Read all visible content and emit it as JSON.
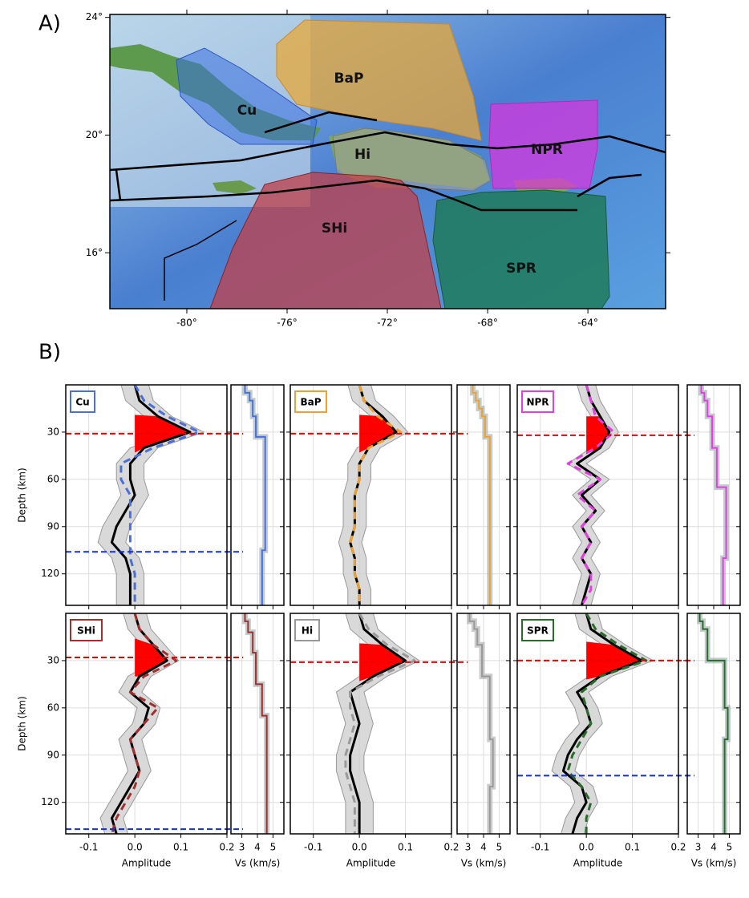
{
  "panel_a": {
    "label": "A)",
    "xlim": [
      -83.07,
      -60.9
    ],
    "ylim": [
      14.1,
      24.1
    ],
    "lat_ticks": [
      {
        "value": 24,
        "label": "24°"
      },
      {
        "value": 20,
        "label": "20°"
      },
      {
        "value": 16,
        "label": "16°"
      }
    ],
    "lon_ticks": [
      {
        "value": -80,
        "label": "-80°"
      },
      {
        "value": -76,
        "label": "-76°"
      },
      {
        "value": -72,
        "label": "-72°"
      },
      {
        "value": -68,
        "label": "-68°"
      },
      {
        "value": -64,
        "label": "-64°"
      }
    ],
    "regions": [
      "Cu",
      "BaP",
      "NPR",
      "Hi",
      "SHi",
      "SPR"
    ]
  },
  "panel_b": {
    "label": "B)",
    "depth_label": "Depth (km)",
    "amplitude_label": "Amplitude",
    "vs_label": "Vs (km/s)",
    "ylim": [
      0,
      140
    ],
    "yticks": [
      30,
      60,
      90,
      120
    ],
    "amp_xlim": [
      -0.15,
      0.2
    ],
    "amp_xticks": [
      -0.1,
      {
        "value": 0,
        "label": "0.0"
      },
      0.1,
      0.2
    ],
    "vs_xlim": [
      2.3,
      5.7
    ],
    "vs_xticks": [
      3,
      4,
      5
    ],
    "depths": [
      0,
      10,
      20,
      30,
      40,
      50,
      60,
      70,
      80,
      90,
      100,
      110,
      120,
      130,
      140
    ],
    "panels": [
      {
        "name": "Cu",
        "color": "#4a6fd8",
        "moho": 31,
        "negative": 106,
        "band": 0.03,
        "observed": [
          0,
          0.01,
          0.05,
          0.12,
          0.02,
          -0.01,
          -0.01,
          0,
          -0.02,
          -0.04,
          -0.05,
          -0.02,
          -0.01,
          -0.01,
          -0.01
        ],
        "model": [
          0,
          0.02,
          0.07,
          0.14,
          0.04,
          -0.03,
          -0.03,
          -0.01,
          -0.01,
          -0.01,
          -0.01,
          -0.01,
          0,
          0,
          0
        ],
        "vs_depth": [
          0,
          5,
          10,
          20,
          33,
          105
        ],
        "vs": [
          3.2,
          3.5,
          3.7,
          3.9,
          4.5,
          4.3
        ]
      },
      {
        "name": "BaP",
        "color": "#f0a030",
        "moho": 31,
        "negative": null,
        "band": 0.025,
        "observed": [
          0,
          0.01,
          0.05,
          0.08,
          0.02,
          0,
          0,
          -0.01,
          -0.01,
          -0.01,
          -0.02,
          -0.01,
          -0.01,
          0,
          0
        ],
        "model": [
          0,
          0.01,
          0.04,
          0.09,
          0.02,
          0,
          0,
          -0.01,
          -0.01,
          -0.01,
          -0.02,
          -0.01,
          -0.01,
          0,
          0
        ],
        "vs_depth": [
          0,
          5,
          10,
          15,
          20,
          33
        ],
        "vs": [
          3.3,
          3.5,
          3.7,
          3.9,
          4.1,
          4.4
        ]
      },
      {
        "name": "NPR",
        "color": "#e040e0",
        "moho": 32,
        "negative": null,
        "band": 0.02,
        "observed": [
          0,
          0.01,
          0.03,
          0.05,
          0.03,
          -0.02,
          0.03,
          -0.01,
          0.02,
          -0.01,
          0.01,
          -0.01,
          0.01,
          0,
          -0.01
        ],
        "model": [
          0,
          0.01,
          0.02,
          0.06,
          0.02,
          -0.04,
          0.03,
          -0.02,
          0.02,
          -0.01,
          0.01,
          -0.01,
          0.01,
          0.01,
          -0.01
        ],
        "vs_depth": [
          0,
          5,
          10,
          20,
          40,
          65,
          110
        ],
        "vs": [
          3.2,
          3.4,
          3.6,
          3.9,
          4.2,
          4.8,
          4.6
        ]
      },
      {
        "name": "SHi",
        "color": "#a03030",
        "moho": 28,
        "negative": 137,
        "band": 0.025,
        "observed": [
          0,
          0.01,
          0.04,
          0.07,
          0.01,
          -0.01,
          0.03,
          0.02,
          -0.01,
          0,
          0.01,
          -0.01,
          -0.03,
          -0.05,
          -0.04
        ],
        "model": [
          0,
          0.01,
          0.04,
          0.09,
          0.02,
          -0.01,
          0.05,
          0.02,
          -0.01,
          0,
          0.01,
          0,
          -0.02,
          -0.04,
          -0.05
        ],
        "vs_depth": [
          0,
          5,
          12,
          25,
          45,
          65
        ],
        "vs": [
          3.2,
          3.4,
          3.7,
          3.9,
          4.3,
          4.6
        ]
      },
      {
        "name": "Hi",
        "color": "#999999",
        "moho": 31,
        "negative": null,
        "band": 0.03,
        "observed": [
          0,
          0.01,
          0.05,
          0.1,
          0.03,
          -0.02,
          -0.01,
          0,
          -0.01,
          -0.02,
          -0.02,
          -0.01,
          0,
          0,
          0
        ],
        "model": [
          0,
          0.02,
          0.06,
          0.12,
          0.04,
          -0.02,
          -0.02,
          -0.01,
          -0.02,
          -0.03,
          -0.03,
          -0.02,
          -0.01,
          -0.01,
          -0.01
        ],
        "vs_depth": [
          0,
          5,
          10,
          20,
          40,
          80,
          110
        ],
        "vs": [
          3.1,
          3.4,
          3.6,
          3.9,
          4.4,
          4.6,
          4.4
        ]
      },
      {
        "name": "SPR",
        "color": "#2a6a2a",
        "moho": 30,
        "negative": 103,
        "band": 0.025,
        "observed": [
          0,
          0.01,
          0.06,
          0.12,
          0.03,
          -0.02,
          0,
          0.01,
          -0.02,
          -0.04,
          -0.05,
          -0.01,
          0,
          -0.02,
          -0.03
        ],
        "model": [
          0,
          0.02,
          0.07,
          0.13,
          0.03,
          -0.01,
          0,
          0.01,
          -0.01,
          -0.03,
          -0.04,
          -0.01,
          0.01,
          0,
          0
        ],
        "vs_depth": [
          0,
          5,
          10,
          30,
          60,
          80
        ],
        "vs": [
          3.1,
          3.3,
          3.6,
          4.7,
          4.9,
          4.7
        ]
      }
    ]
  }
}
